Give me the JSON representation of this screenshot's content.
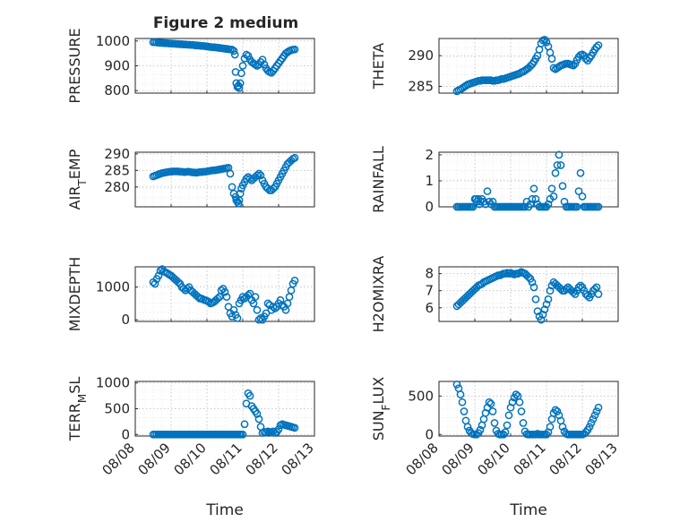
{
  "title": "Figure 2 medium",
  "marker_color": "#0072BD",
  "x_tick_labels": [
    "08/08",
    "08/09",
    "08/10",
    "08/11",
    "08/12",
    "08/13"
  ],
  "chart_data": [
    {
      "type": "scatter",
      "ylabel": "PRESSURE",
      "ylim": [
        790,
        1010
      ],
      "yticks": [
        800,
        900,
        1000
      ],
      "xlim": [
        0,
        5
      ],
      "grid": true,
      "x": [
        0.5,
        0.55,
        0.6,
        0.65,
        0.7,
        0.75,
        0.8,
        0.85,
        0.9,
        0.95,
        1.0,
        1.05,
        1.1,
        1.15,
        1.2,
        1.25,
        1.3,
        1.35,
        1.4,
        1.45,
        1.5,
        1.55,
        1.6,
        1.65,
        1.7,
        1.75,
        1.8,
        1.85,
        1.9,
        1.95,
        2.0,
        2.05,
        2.1,
        2.15,
        2.2,
        2.25,
        2.3,
        2.35,
        2.4,
        2.45,
        2.5,
        2.55,
        2.6,
        2.65,
        2.7,
        2.75,
        2.78,
        2.8,
        2.82,
        2.85,
        2.88,
        2.9,
        2.93,
        2.96,
        3.0,
        3.05,
        3.1,
        3.15,
        3.2,
        3.25,
        3.3,
        3.35,
        3.4,
        3.45,
        3.5,
        3.55,
        3.6,
        3.65,
        3.7,
        3.75,
        3.8,
        3.85,
        3.9,
        3.95,
        4.0,
        4.05,
        4.1,
        4.15,
        4.2,
        4.25,
        4.3,
        4.35,
        4.4,
        4.45
      ],
      "y": [
        995,
        995,
        994,
        993,
        993,
        992,
        992,
        991,
        991,
        990,
        990,
        989,
        989,
        988,
        988,
        987,
        987,
        986,
        986,
        985,
        985,
        984,
        984,
        983,
        982,
        982,
        981,
        980,
        980,
        979,
        978,
        977,
        976,
        975,
        975,
        974,
        973,
        972,
        971,
        970,
        969,
        968,
        967,
        966,
        965,
        960,
        945,
        875,
        830,
        815,
        820,
        810,
        830,
        870,
        900,
        930,
        945,
        940,
        925,
        915,
        910,
        905,
        900,
        905,
        915,
        925,
        905,
        890,
        880,
        875,
        872,
        880,
        890,
        900,
        910,
        920,
        930,
        940,
        950,
        955,
        960,
        963,
        965,
        966
      ]
    },
    {
      "type": "scatter",
      "ylabel": "THETA",
      "ylim": [
        283.9,
        292.8
      ],
      "yticks": [
        285,
        290
      ],
      "xlim": [
        0,
        5
      ],
      "grid": true,
      "x": [
        0.5,
        0.55,
        0.6,
        0.65,
        0.7,
        0.75,
        0.8,
        0.85,
        0.9,
        0.95,
        1.0,
        1.05,
        1.1,
        1.15,
        1.2,
        1.25,
        1.3,
        1.35,
        1.4,
        1.45,
        1.5,
        1.55,
        1.6,
        1.65,
        1.7,
        1.75,
        1.8,
        1.85,
        1.9,
        1.95,
        2.0,
        2.05,
        2.1,
        2.15,
        2.2,
        2.25,
        2.3,
        2.35,
        2.4,
        2.45,
        2.5,
        2.55,
        2.6,
        2.65,
        2.7,
        2.75,
        2.8,
        2.85,
        2.9,
        2.95,
        3.0,
        3.05,
        3.1,
        3.15,
        3.2,
        3.25,
        3.3,
        3.35,
        3.4,
        3.45,
        3.5,
        3.55,
        3.6,
        3.65,
        3.7,
        3.75,
        3.8,
        3.85,
        3.9,
        3.95,
        4.0,
        4.05,
        4.1,
        4.15,
        4.2,
        4.25,
        4.3,
        4.35,
        4.4,
        4.45
      ],
      "y": [
        284.2,
        284.4,
        284.5,
        284.7,
        284.9,
        285.1,
        285.3,
        285.4,
        285.5,
        285.6,
        285.7,
        285.8,
        285.9,
        285.9,
        286.0,
        286.0,
        286.0,
        286.0,
        286.0,
        286.0,
        285.9,
        285.9,
        286.0,
        286.0,
        286.1,
        286.2,
        286.2,
        286.3,
        286.4,
        286.5,
        286.6,
        286.7,
        286.8,
        286.9,
        287.0,
        287.1,
        287.3,
        287.4,
        287.6,
        287.8,
        288.0,
        288.3,
        288.6,
        289.0,
        289.5,
        290.0,
        291.0,
        292.0,
        292.5,
        292.6,
        292.2,
        291.5,
        290.5,
        289.5,
        288.0,
        287.8,
        288.0,
        288.2,
        288.4,
        288.5,
        288.6,
        288.7,
        288.7,
        288.6,
        288.5,
        288.4,
        288.7,
        289.3,
        289.8,
        290.1,
        290.2,
        290.0,
        289.5,
        289.2,
        289.6,
        290.0,
        290.5,
        291.0,
        291.4,
        291.7
      ]
    },
    {
      "type": "scatter",
      "ylabel": "AIR_TEMP",
      "ylim": [
        274,
        290.5
      ],
      "yticks": [
        280,
        285,
        290
      ],
      "xlim": [
        0,
        5
      ],
      "grid": true,
      "x": [
        0.5,
        0.55,
        0.6,
        0.65,
        0.7,
        0.75,
        0.8,
        0.85,
        0.9,
        0.95,
        1.0,
        1.05,
        1.1,
        1.15,
        1.2,
        1.25,
        1.3,
        1.35,
        1.4,
        1.45,
        1.5,
        1.55,
        1.6,
        1.65,
        1.7,
        1.75,
        1.8,
        1.85,
        1.9,
        1.95,
        2.0,
        2.05,
        2.1,
        2.15,
        2.2,
        2.25,
        2.3,
        2.35,
        2.4,
        2.45,
        2.5,
        2.55,
        2.6,
        2.65,
        2.7,
        2.75,
        2.8,
        2.82,
        2.85,
        2.88,
        2.9,
        2.93,
        2.96,
        3.0,
        3.05,
        3.1,
        3.15,
        3.2,
        3.25,
        3.3,
        3.35,
        3.4,
        3.45,
        3.5,
        3.55,
        3.6,
        3.65,
        3.7,
        3.75,
        3.8,
        3.85,
        3.9,
        3.95,
        4.0,
        4.05,
        4.1,
        4.15,
        4.2,
        4.25,
        4.3,
        4.35,
        4.4,
        4.45
      ],
      "y": [
        283.2,
        283.4,
        283.6,
        283.8,
        284.0,
        284.2,
        284.3,
        284.4,
        284.5,
        284.6,
        284.6,
        284.7,
        284.7,
        284.7,
        284.7,
        284.6,
        284.6,
        284.5,
        284.5,
        284.6,
        284.6,
        284.5,
        284.4,
        284.4,
        284.3,
        284.4,
        284.5,
        284.5,
        284.6,
        284.6,
        284.7,
        284.8,
        284.9,
        285.0,
        285.0,
        285.1,
        285.2,
        285.3,
        285.4,
        285.5,
        285.6,
        285.7,
        285.8,
        284.0,
        280.0,
        278.0,
        277.0,
        276.0,
        275.5,
        275.0,
        276.0,
        278.0,
        279.5,
        280.5,
        281.5,
        282.5,
        283.0,
        282.5,
        282.0,
        282.5,
        283.0,
        283.5,
        284.0,
        283.5,
        282.0,
        281.0,
        280.0,
        279.5,
        279.0,
        279.0,
        279.5,
        280.0,
        281.0,
        282.0,
        283.0,
        284.0,
        285.0,
        286.0,
        287.0,
        287.5,
        288.0,
        288.5,
        288.8
      ]
    },
    {
      "type": "scatter",
      "ylabel": "RAINFALL",
      "ylim": [
        0,
        2.1
      ],
      "yticks": [
        0,
        1,
        2
      ],
      "xlim": [
        0,
        5
      ],
      "grid": true,
      "x": [
        0.5,
        0.55,
        0.6,
        0.65,
        0.7,
        0.75,
        0.8,
        0.85,
        0.9,
        0.95,
        1.0,
        1.03,
        1.06,
        1.1,
        1.13,
        1.16,
        1.2,
        1.25,
        1.3,
        1.35,
        1.4,
        1.45,
        1.5,
        1.55,
        1.6,
        1.65,
        1.7,
        1.75,
        1.8,
        1.85,
        1.9,
        1.95,
        2.0,
        2.05,
        2.1,
        2.15,
        2.2,
        2.25,
        2.3,
        2.35,
        2.4,
        2.45,
        2.5,
        2.55,
        2.6,
        2.65,
        2.7,
        2.75,
        2.8,
        2.85,
        2.9,
        2.95,
        3.0,
        3.05,
        3.1,
        3.15,
        3.2,
        3.25,
        3.3,
        3.35,
        3.4,
        3.45,
        3.5,
        3.55,
        3.6,
        3.65,
        3.7,
        3.75,
        3.8,
        3.85,
        3.9,
        3.95,
        4.0,
        4.05,
        4.1,
        4.15,
        4.2,
        4.25,
        4.3,
        4.35,
        4.4,
        4.45
      ],
      "y": [
        0,
        0,
        0,
        0,
        0,
        0,
        0,
        0,
        0,
        0,
        0.3,
        0.3,
        0.2,
        0.3,
        0.1,
        0.2,
        0.3,
        0.2,
        0.1,
        0.6,
        0.2,
        0.1,
        0.2,
        0,
        0,
        0,
        0,
        0,
        0,
        0,
        0,
        0,
        0,
        0,
        0,
        0,
        0,
        0,
        0,
        0,
        0,
        0.2,
        0,
        0.1,
        0.3,
        0.7,
        0.3,
        0.1,
        0,
        0,
        0,
        0,
        0,
        0.1,
        0.3,
        0.7,
        0.4,
        1.3,
        1.6,
        2.0,
        1.6,
        0.8,
        0.2,
        0,
        0,
        0,
        0,
        0,
        0,
        0,
        0.6,
        1.3,
        0.4,
        0,
        0,
        0,
        0,
        0,
        0,
        0,
        0,
        0
      ]
    },
    {
      "type": "scatter",
      "ylabel": "MIXDEPTH",
      "ylim": [
        -50,
        1620
      ],
      "yticks": [
        0,
        1000
      ],
      "xlim": [
        0,
        5
      ],
      "grid": true,
      "x": [
        0.5,
        0.55,
        0.6,
        0.65,
        0.7,
        0.75,
        0.8,
        0.85,
        0.9,
        0.95,
        1.0,
        1.05,
        1.1,
        1.15,
        1.2,
        1.25,
        1.3,
        1.35,
        1.4,
        1.45,
        1.5,
        1.55,
        1.6,
        1.65,
        1.7,
        1.75,
        1.8,
        1.85,
        1.9,
        1.95,
        2.0,
        2.05,
        2.1,
        2.15,
        2.2,
        2.25,
        2.3,
        2.35,
        2.4,
        2.45,
        2.5,
        2.55,
        2.6,
        2.65,
        2.7,
        2.75,
        2.8,
        2.85,
        2.9,
        2.95,
        3.0,
        3.05,
        3.1,
        3.15,
        3.2,
        3.25,
        3.3,
        3.35,
        3.4,
        3.45,
        3.5,
        3.55,
        3.6,
        3.65,
        3.7,
        3.75,
        3.8,
        3.85,
        3.9,
        3.95,
        4.0,
        4.05,
        4.1,
        4.15,
        4.2,
        4.25,
        4.3,
        4.35,
        4.4,
        4.45
      ],
      "y": [
        1150,
        1100,
        1250,
        1350,
        1500,
        1550,
        1480,
        1450,
        1420,
        1380,
        1350,
        1300,
        1250,
        1200,
        1150,
        1100,
        1000,
        950,
        900,
        950,
        1000,
        900,
        850,
        800,
        750,
        700,
        650,
        650,
        620,
        600,
        580,
        550,
        500,
        520,
        550,
        600,
        650,
        700,
        900,
        950,
        850,
        700,
        400,
        200,
        100,
        300,
        150,
        50,
        500,
        600,
        700,
        650,
        700,
        750,
        800,
        600,
        500,
        700,
        300,
        0,
        50,
        0,
        100,
        200,
        500,
        450,
        300,
        400,
        350,
        400,
        500,
        600,
        450,
        400,
        300,
        500,
        700,
        900,
        1100,
        1200
      ]
    },
    {
      "type": "scatter",
      "ylabel": "H2OMIXRA",
      "ylim": [
        5.2,
        8.4
      ],
      "yticks": [
        6,
        7,
        8
      ],
      "xlim": [
        0,
        5
      ],
      "grid": true,
      "x": [
        0.5,
        0.55,
        0.6,
        0.65,
        0.7,
        0.75,
        0.8,
        0.85,
        0.9,
        0.95,
        1.0,
        1.05,
        1.1,
        1.15,
        1.2,
        1.25,
        1.3,
        1.35,
        1.4,
        1.45,
        1.5,
        1.55,
        1.6,
        1.65,
        1.7,
        1.75,
        1.8,
        1.85,
        1.9,
        1.95,
        2.0,
        2.05,
        2.1,
        2.15,
        2.2,
        2.25,
        2.3,
        2.35,
        2.4,
        2.45,
        2.5,
        2.55,
        2.6,
        2.65,
        2.7,
        2.75,
        2.8,
        2.85,
        2.9,
        2.95,
        3.0,
        3.05,
        3.1,
        3.15,
        3.2,
        3.25,
        3.3,
        3.35,
        3.4,
        3.45,
        3.5,
        3.55,
        3.6,
        3.65,
        3.7,
        3.75,
        3.8,
        3.85,
        3.9,
        3.95,
        4.0,
        4.05,
        4.1,
        4.15,
        4.2,
        4.25,
        4.3,
        4.35,
        4.4,
        4.45
      ],
      "y": [
        6.1,
        6.2,
        6.3,
        6.4,
        6.5,
        6.6,
        6.7,
        6.8,
        6.9,
        7.0,
        7.1,
        7.2,
        7.3,
        7.35,
        7.4,
        7.5,
        7.55,
        7.6,
        7.65,
        7.7,
        7.75,
        7.8,
        7.85,
        7.9,
        7.9,
        7.95,
        8.0,
        8.0,
        8.05,
        8.0,
        8.05,
        8.0,
        7.95,
        8.0,
        8.0,
        8.05,
        8.1,
        8.05,
        8.0,
        7.9,
        7.8,
        7.7,
        7.5,
        7.2,
        6.5,
        5.8,
        5.5,
        5.3,
        5.6,
        5.9,
        6.2,
        6.5,
        7.0,
        7.3,
        7.5,
        7.4,
        7.3,
        7.2,
        7.1,
        7.0,
        7.0,
        7.1,
        7.2,
        7.1,
        7.0,
        6.9,
        6.8,
        7.0,
        7.2,
        7.3,
        7.2,
        7.0,
        6.8,
        6.7,
        6.6,
        6.8,
        7.0,
        7.1,
        7.2,
        6.8
      ]
    },
    {
      "type": "scatter",
      "ylabel": "TERR_MSL",
      "ylim": [
        -30,
        1030
      ],
      "yticks": [
        0,
        500,
        1000
      ],
      "xlim": [
        0,
        5
      ],
      "grid": true,
      "x": [
        0.5,
        0.55,
        0.6,
        0.65,
        0.7,
        0.75,
        0.8,
        0.85,
        0.9,
        0.95,
        1.0,
        1.05,
        1.1,
        1.15,
        1.2,
        1.25,
        1.3,
        1.35,
        1.4,
        1.45,
        1.5,
        1.55,
        1.6,
        1.65,
        1.7,
        1.75,
        1.8,
        1.85,
        1.9,
        1.95,
        2.0,
        2.05,
        2.1,
        2.15,
        2.2,
        2.25,
        2.3,
        2.35,
        2.4,
        2.45,
        2.5,
        2.55,
        2.6,
        2.65,
        2.7,
        2.75,
        2.8,
        2.85,
        2.9,
        2.95,
        3.0,
        3.05,
        3.1,
        3.15,
        3.2,
        3.25,
        3.3,
        3.35,
        3.4,
        3.45,
        3.5,
        3.55,
        3.6,
        3.65,
        3.7,
        3.75,
        3.8,
        3.85,
        3.9,
        3.95,
        4.0,
        4.05,
        4.1,
        4.15,
        4.2,
        4.25,
        4.3,
        4.35,
        4.4,
        4.45
      ],
      "y": [
        0,
        0,
        0,
        0,
        0,
        0,
        0,
        0,
        0,
        0,
        0,
        0,
        0,
        0,
        0,
        0,
        0,
        0,
        0,
        0,
        0,
        0,
        0,
        0,
        0,
        0,
        0,
        0,
        0,
        0,
        0,
        0,
        0,
        0,
        0,
        0,
        0,
        0,
        0,
        0,
        0,
        0,
        0,
        0,
        0,
        0,
        0,
        0,
        0,
        0,
        0,
        200,
        600,
        800,
        750,
        550,
        500,
        450,
        400,
        300,
        150,
        30,
        50,
        40,
        60,
        50,
        40,
        60,
        30,
        50,
        100,
        180,
        200,
        190,
        180,
        170,
        160,
        150,
        140,
        130
      ]
    },
    {
      "type": "scatter",
      "ylabel": "SUN_FLUX",
      "ylim": [
        -20,
        690
      ],
      "yticks": [
        0,
        500
      ],
      "xlim": [
        0,
        5
      ],
      "grid": true,
      "x": [
        0.5,
        0.55,
        0.6,
        0.65,
        0.7,
        0.75,
        0.8,
        0.85,
        0.9,
        0.95,
        1.0,
        1.05,
        1.1,
        1.15,
        1.2,
        1.25,
        1.3,
        1.35,
        1.4,
        1.45,
        1.5,
        1.55,
        1.6,
        1.65,
        1.7,
        1.75,
        1.8,
        1.85,
        1.9,
        1.95,
        2.0,
        2.05,
        2.1,
        2.15,
        2.2,
        2.25,
        2.3,
        2.35,
        2.4,
        2.45,
        2.5,
        2.55,
        2.6,
        2.65,
        2.7,
        2.75,
        2.8,
        2.85,
        2.9,
        2.95,
        3.0,
        3.05,
        3.1,
        3.15,
        3.2,
        3.25,
        3.3,
        3.35,
        3.4,
        3.45,
        3.5,
        3.55,
        3.6,
        3.65,
        3.7,
        3.75,
        3.8,
        3.85,
        3.9,
        3.95,
        4.0,
        4.05,
        4.1,
        4.15,
        4.2,
        4.25,
        4.3,
        4.35,
        4.4,
        4.45
      ],
      "y": [
        650,
        600,
        520,
        420,
        300,
        180,
        100,
        50,
        20,
        5,
        0,
        0,
        20,
        60,
        120,
        200,
        280,
        350,
        420,
        400,
        300,
        150,
        50,
        10,
        0,
        0,
        0,
        30,
        120,
        250,
        350,
        420,
        480,
        520,
        500,
        420,
        300,
        150,
        40,
        5,
        0,
        0,
        0,
        0,
        0,
        10,
        0,
        0,
        0,
        0,
        0,
        30,
        100,
        200,
        280,
        320,
        300,
        250,
        180,
        100,
        40,
        10,
        0,
        0,
        0,
        0,
        0,
        0,
        0,
        0,
        0,
        10,
        30,
        60,
        100,
        150,
        200,
        250,
        300,
        350
      ]
    }
  ]
}
